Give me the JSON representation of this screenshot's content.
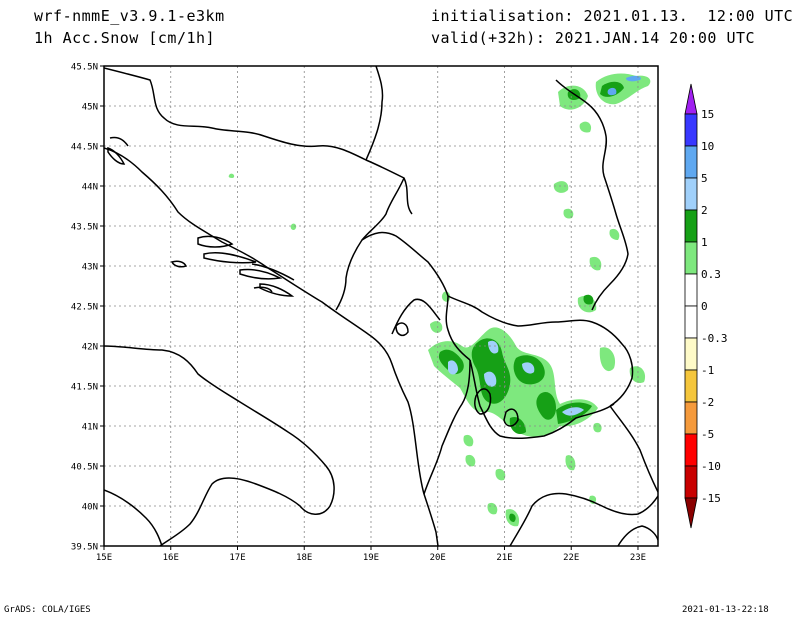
{
  "header": {
    "model": "wrf-nmmE_v3.9.1-e3km",
    "field": "1h Acc.Snow [cm/1h]",
    "init": "initialisation: 2021.01.13.  12:00 UTC",
    "valid": "valid(+32h): 2021.JAN.14 20:00 UTC"
  },
  "footer": {
    "left": "GrADS: COLA/IGES",
    "right": "2021-01-13-22:18"
  },
  "map": {
    "lat_labels": [
      "45.5N",
      "45N",
      "44.5N",
      "44N",
      "43.5N",
      "43N",
      "42.5N",
      "42N",
      "41.5N",
      "41N",
      "40.5N",
      "40N",
      "39.5N"
    ],
    "lon_labels": [
      "15E",
      "16E",
      "17E",
      "18E",
      "19E",
      "20E",
      "21E",
      "22E",
      "23E"
    ],
    "lat_range": [
      39.5,
      45.5
    ],
    "lon_range": [
      15.0,
      23.3
    ],
    "grid": true
  },
  "colorbar": {
    "labels": [
      "15",
      "10",
      "5",
      "2",
      "1",
      "0.3",
      "0",
      "-0.3",
      "-1",
      "-2",
      "-5",
      "-10",
      "-15"
    ],
    "colors": [
      "#a020f0",
      "#3838ff",
      "#5fa8f0",
      "#a0d0fa",
      "#16a016",
      "#7ee87e",
      "#ffffff",
      "#ffffff",
      "#fefac8",
      "#f5c63c",
      "#f59a3c",
      "#ff0000",
      "#c80000",
      "#8a0000"
    ]
  },
  "snow_colors": {
    "light": "#7ee87e",
    "medium": "#16a016",
    "heavy": "#a0d0fa",
    "heavier": "#5fa8f0"
  }
}
